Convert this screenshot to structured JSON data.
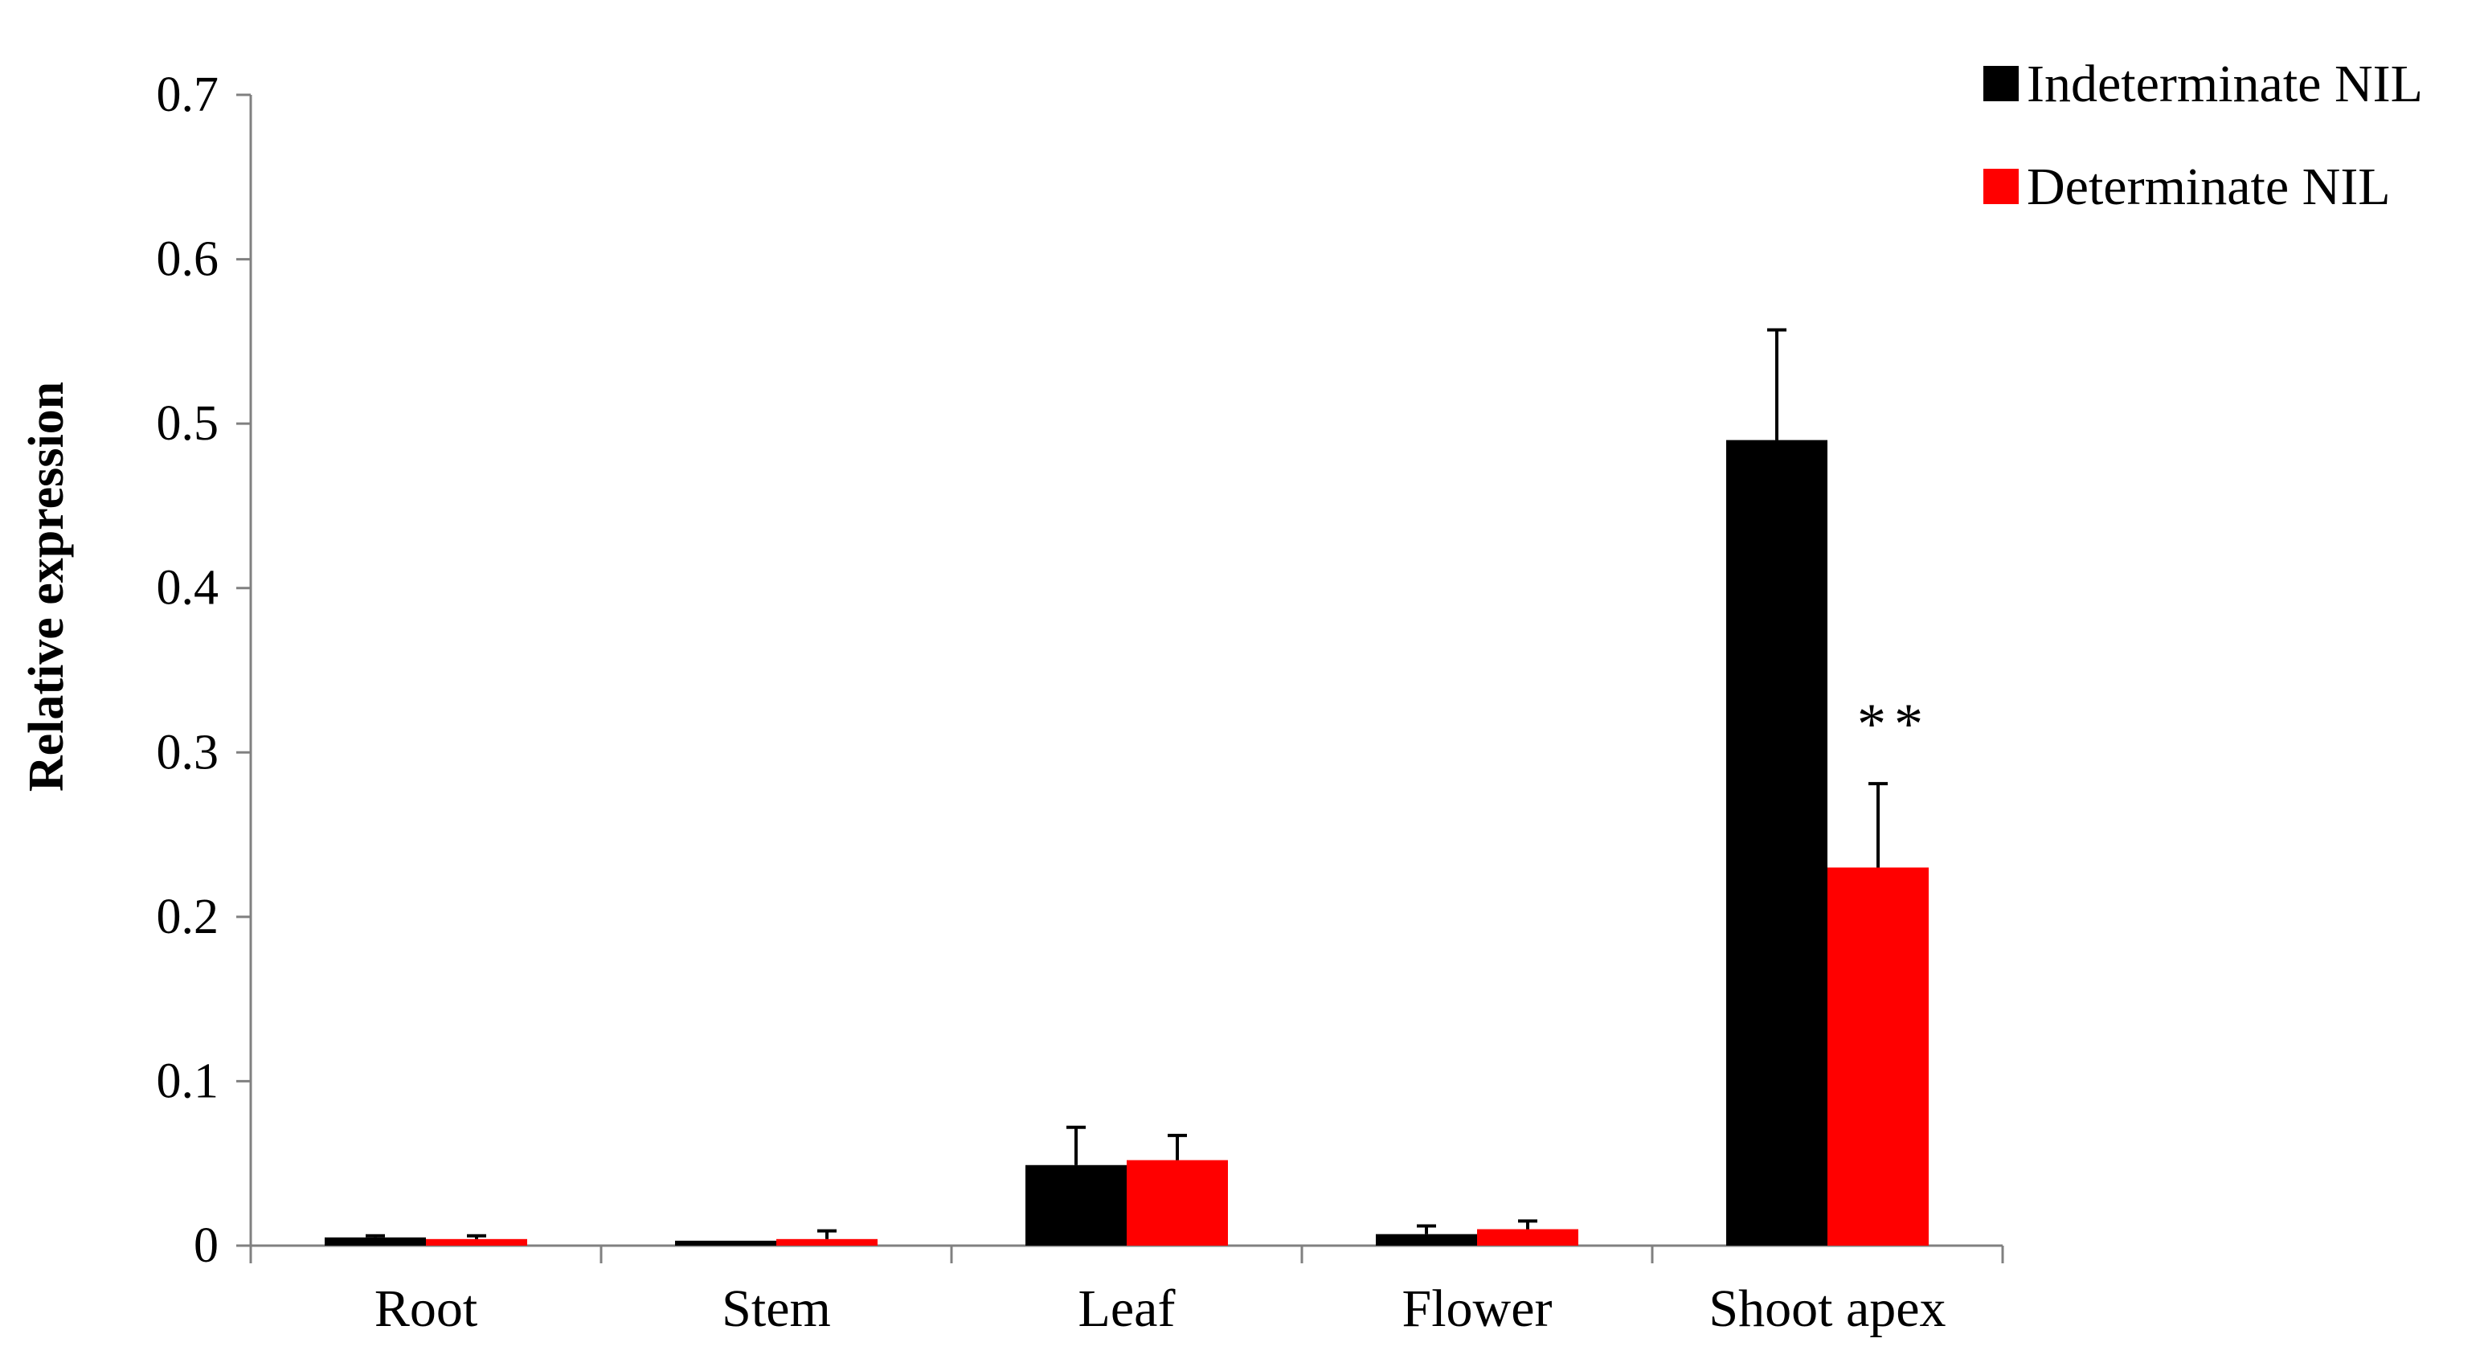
{
  "chart_data": {
    "type": "bar",
    "categories": [
      "Root",
      "Stem",
      "Leaf",
      "Flower",
      "Shoot apex"
    ],
    "series": [
      {
        "name": "Indeterminate NIL",
        "color": "#000000",
        "values": [
          0.005,
          0.003,
          0.049,
          0.007,
          0.49
        ],
        "errors": [
          0.001,
          0.0,
          0.023,
          0.005,
          0.067
        ]
      },
      {
        "name": "Determinate NIL",
        "color": "#ff0000",
        "values": [
          0.004,
          0.004,
          0.052,
          0.01,
          0.23
        ],
        "errors": [
          0.002,
          0.005,
          0.015,
          0.005,
          0.051
        ]
      }
    ],
    "ylabel": "Relative expression",
    "xlabel": "",
    "title": "",
    "ylim": [
      0,
      0.7
    ],
    "yticks": [
      "0",
      "0.1",
      "0.2",
      "0.3",
      "0.4",
      "0.5",
      "0.6",
      "0.7"
    ],
    "grid": false,
    "legend_position": "top-right",
    "annotations": [
      {
        "text": "**",
        "category": "Shoot apex",
        "series": "Determinate NIL"
      }
    ]
  }
}
